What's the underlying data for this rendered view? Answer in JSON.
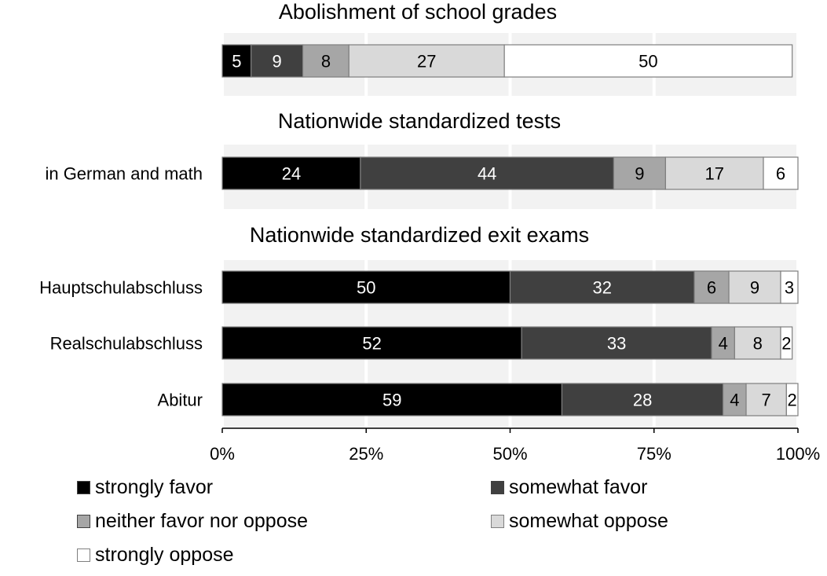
{
  "chart_data": {
    "type": "bar",
    "orientation": "horizontal",
    "stacked": true,
    "sections": [
      {
        "title": "Abolishment of school grades",
        "rows": [
          {
            "label": "",
            "values": [
              5,
              9,
              8,
              27,
              50
            ]
          }
        ]
      },
      {
        "title": "Nationwide standardized tests",
        "rows": [
          {
            "label": "in German and math",
            "values": [
              24,
              44,
              9,
              17,
              6
            ]
          }
        ]
      },
      {
        "title": "Nationwide standardized exit exams",
        "rows": [
          {
            "label": "Hauptschulabschluss",
            "values": [
              50,
              32,
              6,
              9,
              3
            ]
          },
          {
            "label": "Realschulabschluss",
            "values": [
              52,
              33,
              4,
              8,
              2
            ]
          },
          {
            "label": "Abitur",
            "values": [
              59,
              28,
              4,
              7,
              2
            ]
          }
        ]
      }
    ],
    "series": [
      {
        "name": "strongly favor",
        "color": "#000000",
        "label_color": "#ffffff"
      },
      {
        "name": "somewhat favor",
        "color": "#404040",
        "label_color": "#ffffff"
      },
      {
        "name": "neither favor nor oppose",
        "color": "#a6a6a6",
        "label_color": "#000000"
      },
      {
        "name": "somewhat oppose",
        "color": "#d9d9d9",
        "label_color": "#000000"
      },
      {
        "name": "strongly oppose",
        "color": "#ffffff",
        "label_color": "#000000"
      }
    ],
    "xlim": [
      0,
      100
    ],
    "x_ticks": [
      "0%",
      "25%",
      "50%",
      "75%",
      "100%"
    ],
    "xlabel": "",
    "ylabel": "",
    "grid": "alternating shaded bands",
    "legend_position": "bottom"
  }
}
